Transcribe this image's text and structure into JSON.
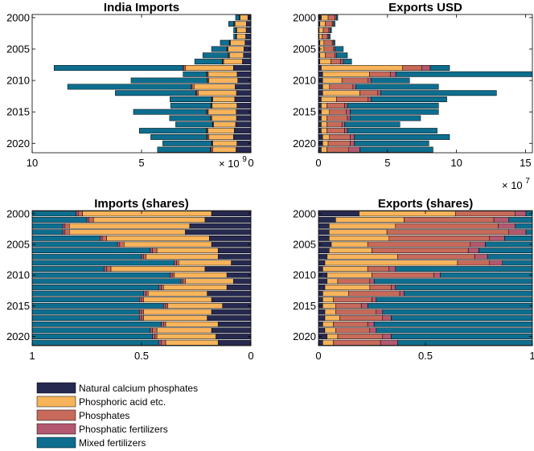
{
  "colors": {
    "natural": "#262950",
    "acid": "#f8b45b",
    "phosphates": "#c76a5a",
    "fertilizers": "#b35870",
    "mixed": "#0d6e8f"
  },
  "legend": [
    {
      "key": "natural",
      "label": "Natural calcium phosphates"
    },
    {
      "key": "acid",
      "label": "Phosphoric acid etc."
    },
    {
      "key": "phosphates",
      "label": "Phosphates"
    },
    {
      "key": "fertilizers",
      "label": "Phosphatic fertilizers"
    },
    {
      "key": "mixed",
      "label": "Mixed fertilizers"
    }
  ],
  "chart_data": [
    {
      "id": "imports",
      "type": "bar",
      "orientation": "horizontal-stacked",
      "title": "India Imports",
      "years": [
        2000,
        2001,
        2002,
        2003,
        2004,
        2005,
        2006,
        2007,
        2008,
        2009,
        2010,
        2011,
        2012,
        2013,
        2014,
        2015,
        2016,
        2017,
        2018,
        2019,
        2020,
        2021
      ],
      "y_ticks": [
        "2000",
        "2005",
        "2010",
        "2015",
        "2020"
      ],
      "x_ticks": [
        "10",
        "5",
        "0"
      ],
      "x_reversed": true,
      "xlim": [
        0,
        10
      ],
      "exponent": "9",
      "series": [
        {
          "name": "Natural calcium phosphates",
          "values": [
            0.14,
            0.21,
            0.22,
            0.24,
            0.27,
            0.32,
            0.34,
            0.39,
            0.8,
            0.63,
            0.6,
            0.72,
            0.66,
            0.74,
            0.64,
            0.67,
            0.66,
            0.7,
            0.76,
            0.8,
            0.64,
            0.68
          ]
        },
        {
          "name": "Phosphoric acid etc.",
          "values": [
            0.36,
            0.52,
            0.43,
            0.42,
            0.66,
            0.72,
            0.64,
            0.86,
            2.19,
            1.32,
            1.33,
            1.88,
            1.74,
            1.0,
            1.13,
            1.28,
            1.13,
            1.0,
            1.2,
            1.12,
            1.1,
            1.06
          ]
        },
        {
          "name": "Phosphates",
          "values": [
            0.02,
            0.03,
            0.02,
            0.02,
            0.04,
            0.04,
            0.04,
            0.04,
            0.09,
            0.05,
            0.05,
            0.09,
            0.08,
            0.04,
            0.04,
            0.05,
            0.04,
            0.04,
            0.05,
            0.07,
            0.04,
            0.08
          ]
        },
        {
          "name": "Phosphatic fertilizers",
          "values": [
            0.01,
            0.02,
            0.01,
            0.01,
            0.02,
            0.02,
            0.02,
            0.02,
            0.04,
            0.02,
            0.02,
            0.04,
            0.04,
            0.02,
            0.02,
            0.02,
            0.02,
            0.02,
            0.02,
            0.03,
            0.02,
            0.04
          ]
        },
        {
          "name": "Mixed fertilizers",
          "values": [
            0.17,
            0.24,
            0.11,
            0.1,
            0.41,
            0.7,
            1.16,
            1.26,
            5.88,
            1.08,
            3.48,
            5.65,
            3.68,
            1.9,
            1.84,
            3.35,
            1.87,
            1.68,
            3.07,
            2.56,
            2.23,
            2.41
          ]
        }
      ]
    },
    {
      "id": "exports",
      "type": "bar",
      "orientation": "horizontal-stacked",
      "title": "Exports USD",
      "years": [
        2000,
        2001,
        2002,
        2003,
        2004,
        2005,
        2006,
        2007,
        2008,
        2009,
        2010,
        2011,
        2012,
        2013,
        2014,
        2015,
        2016,
        2017,
        2018,
        2019,
        2020,
        2021
      ],
      "y_ticks": [
        "2000",
        "2005",
        "2010",
        "2015",
        "2020"
      ],
      "x_ticks": [
        "0",
        "5",
        "10",
        "15"
      ],
      "x_reversed": false,
      "xlim": [
        0,
        15.5
      ],
      "exponent": "7",
      "series": [
        {
          "name": "Natural calcium phosphates",
          "values": [
            0.2,
            0.1,
            0.05,
            0.05,
            0.1,
            0.1,
            0.1,
            0.1,
            0.2,
            0.3,
            0.3,
            0.3,
            0.3,
            0.2,
            0.2,
            0.2,
            0.2,
            0.2,
            0.2,
            0.3,
            0.3,
            0.2
          ]
        },
        {
          "name": "Phosphoric acid etc.",
          "values": [
            0.5,
            0.4,
            0.3,
            0.2,
            0.3,
            0.3,
            0.4,
            0.8,
            5.9,
            3.4,
            1.4,
            0.5,
            2.7,
            1.1,
            0.4,
            0.6,
            0.4,
            0.4,
            0.4,
            0.5,
            0.4,
            0.4
          ]
        },
        {
          "name": "Phosphates",
          "values": [
            0.5,
            0.5,
            0.4,
            0.4,
            0.6,
            0.7,
            0.7,
            0.7,
            1.4,
            1.5,
            1.9,
            1.7,
            1.3,
            2.3,
            1.3,
            1.2,
            1.5,
            1.1,
            1.3,
            1.5,
            1.6,
            1.6
          ]
        },
        {
          "name": "Phosphatic fertilizers",
          "values": [
            0.1,
            0.1,
            0.1,
            0.1,
            0.1,
            0.1,
            0.1,
            0.2,
            0.6,
            0.4,
            0.2,
            0.2,
            0.2,
            0.2,
            0.2,
            0.3,
            0.2,
            0.2,
            0.2,
            0.3,
            0.3,
            0.8
          ]
        },
        {
          "name": "Mixed fertilizers",
          "values": [
            0.1,
            0.1,
            0.1,
            0.1,
            0.1,
            0.6,
            0.8,
            0.6,
            1.4,
            9.9,
            2.8,
            6.0,
            8.4,
            5.5,
            6.6,
            6.4,
            5.1,
            4.0,
            6.5,
            6.9,
            5.4,
            5.3
          ]
        }
      ]
    },
    {
      "id": "imports_shares",
      "type": "bar",
      "orientation": "horizontal-stacked-shares",
      "title": "Imports (shares)",
      "years": [
        2000,
        2001,
        2002,
        2003,
        2004,
        2005,
        2006,
        2007,
        2008,
        2009,
        2010,
        2011,
        2012,
        2013,
        2014,
        2015,
        2016,
        2017,
        2018,
        2019,
        2020,
        2021
      ],
      "y_ticks": [
        "2000",
        "2005",
        "2010",
        "2015",
        "2020"
      ],
      "x_ticks": [
        "1",
        "0.5",
        "0"
      ],
      "x_reversed": true,
      "xlim": [
        0,
        1
      ],
      "series": [
        {
          "name": "Natural calcium phosphates",
          "values": [
            0.18,
            0.21,
            0.28,
            0.3,
            0.19,
            0.18,
            0.15,
            0.15,
            0.09,
            0.21,
            0.11,
            0.08,
            0.11,
            0.2,
            0.18,
            0.13,
            0.18,
            0.2,
            0.15,
            0.18,
            0.16,
            0.15
          ]
        },
        {
          "name": "Phosphoric acid etc.",
          "values": [
            0.59,
            0.51,
            0.55,
            0.53,
            0.47,
            0.4,
            0.28,
            0.33,
            0.24,
            0.43,
            0.24,
            0.22,
            0.29,
            0.27,
            0.31,
            0.25,
            0.31,
            0.29,
            0.24,
            0.25,
            0.27,
            0.24
          ]
        },
        {
          "name": "Phosphates",
          "values": [
            0.02,
            0.02,
            0.02,
            0.02,
            0.02,
            0.02,
            0.02,
            0.01,
            0.01,
            0.02,
            0.01,
            0.01,
            0.01,
            0.01,
            0.01,
            0.01,
            0.01,
            0.01,
            0.01,
            0.02,
            0.01,
            0.02
          ]
        },
        {
          "name": "Phosphatic fertilizers",
          "values": [
            0.01,
            0.01,
            0.01,
            0.01,
            0.01,
            0.01,
            0.01,
            0.01,
            0.01,
            0.01,
            0.01,
            0.01,
            0.01,
            0.01,
            0.01,
            0.01,
            0.01,
            0.01,
            0.01,
            0.01,
            0.01,
            0.01
          ]
        },
        {
          "name": "Mixed fertilizers",
          "values": [
            0.2,
            0.25,
            0.14,
            0.14,
            0.31,
            0.39,
            0.54,
            0.5,
            0.65,
            0.33,
            0.63,
            0.68,
            0.58,
            0.51,
            0.49,
            0.6,
            0.49,
            0.49,
            0.59,
            0.54,
            0.55,
            0.58
          ]
        }
      ]
    },
    {
      "id": "exports_shares",
      "type": "bar",
      "orientation": "horizontal-stacked-shares",
      "title": "Exports (shares)",
      "years": [
        2000,
        2001,
        2002,
        2003,
        2004,
        2005,
        2006,
        2007,
        2008,
        2009,
        2010,
        2011,
        2012,
        2013,
        2014,
        2015,
        2016,
        2017,
        2018,
        2019,
        2020,
        2021
      ],
      "y_ticks": [
        "2000",
        "2005",
        "2010",
        "2015",
        "2020"
      ],
      "x_ticks": [
        "0",
        "0.5",
        "1"
      ],
      "x_reversed": false,
      "xlim": [
        0,
        1
      ],
      "series": [
        {
          "name": "Natural calcium phosphates",
          "values": [
            0.19,
            0.08,
            0.05,
            0.05,
            0.05,
            0.06,
            0.05,
            0.04,
            0.03,
            0.02,
            0.04,
            0.04,
            0.03,
            0.02,
            0.02,
            0.02,
            0.03,
            0.03,
            0.02,
            0.03,
            0.04,
            0.02
          ]
        },
        {
          "name": "Phosphoric acid etc.",
          "values": [
            0.45,
            0.32,
            0.31,
            0.27,
            0.28,
            0.17,
            0.2,
            0.33,
            0.62,
            0.21,
            0.21,
            0.05,
            0.21,
            0.12,
            0.05,
            0.06,
            0.05,
            0.07,
            0.05,
            0.05,
            0.05,
            0.05
          ]
        },
        {
          "name": "Phosphates",
          "values": [
            0.28,
            0.42,
            0.48,
            0.57,
            0.47,
            0.48,
            0.45,
            0.36,
            0.15,
            0.1,
            0.29,
            0.15,
            0.1,
            0.24,
            0.18,
            0.12,
            0.19,
            0.2,
            0.16,
            0.16,
            0.21,
            0.22
          ]
        },
        {
          "name": "Phosphatic fertilizers",
          "values": [
            0.05,
            0.07,
            0.08,
            0.08,
            0.07,
            0.07,
            0.05,
            0.06,
            0.06,
            0.03,
            0.03,
            0.02,
            0.02,
            0.02,
            0.02,
            0.03,
            0.03,
            0.04,
            0.03,
            0.03,
            0.04,
            0.08
          ]
        },
        {
          "name": "Mixed fertilizers",
          "values": [
            0.03,
            0.11,
            0.08,
            0.03,
            0.13,
            0.22,
            0.25,
            0.21,
            0.14,
            0.64,
            0.43,
            0.74,
            0.64,
            0.6,
            0.73,
            0.77,
            0.7,
            0.66,
            0.74,
            0.73,
            0.66,
            0.63
          ]
        }
      ]
    }
  ]
}
